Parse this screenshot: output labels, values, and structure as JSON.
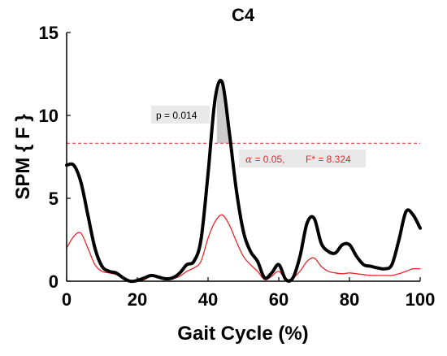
{
  "chart_data": {
    "type": "line",
    "title": "C4",
    "xlabel": "Gait Cycle (%)",
    "ylabel": "SPM { F }",
    "xlim": [
      0,
      100
    ],
    "ylim": [
      0,
      15
    ],
    "xticks": [
      0,
      20,
      40,
      60,
      80,
      100
    ],
    "yticks": [
      0,
      5,
      10,
      15
    ],
    "grid": false,
    "series": [
      {
        "color": "#000000",
        "x": [
          0,
          2,
          4,
          6,
          8,
          10,
          12,
          14,
          16,
          18,
          20,
          22,
          24,
          26,
          28,
          30,
          32,
          34,
          36,
          38,
          40,
          42,
          44,
          46,
          48,
          50,
          52,
          54,
          56,
          58,
          60,
          62,
          64,
          66,
          68,
          70,
          72,
          74,
          76,
          78,
          80,
          82,
          84,
          86,
          88,
          90,
          92,
          94,
          96,
          98,
          100
        ],
        "y": [
          7.0,
          7.0,
          6.0,
          4.0,
          2.0,
          0.9,
          0.6,
          0.5,
          0.2,
          0.0,
          0.05,
          0.2,
          0.35,
          0.25,
          0.15,
          0.2,
          0.5,
          1.0,
          1.2,
          2.5,
          6.5,
          11.0,
          12.0,
          9.0,
          5.5,
          3.0,
          1.8,
          1.2,
          0.2,
          0.5,
          1.0,
          0.1,
          0.2,
          1.5,
          3.5,
          3.8,
          2.3,
          1.8,
          1.7,
          2.2,
          2.2,
          1.5,
          1.0,
          0.9,
          0.8,
          0.75,
          1.0,
          2.5,
          4.2,
          4.0,
          3.2
        ]
      },
      {
        "color": "#e8282c",
        "x": [
          0,
          2,
          4,
          6,
          8,
          10,
          12,
          14,
          16,
          18,
          20,
          22,
          24,
          26,
          28,
          30,
          32,
          34,
          36,
          38,
          40,
          42,
          44,
          46,
          48,
          50,
          52,
          54,
          56,
          58,
          60,
          62,
          64,
          66,
          68,
          70,
          72,
          74,
          76,
          78,
          80,
          82,
          84,
          86,
          88,
          90,
          92,
          94,
          96,
          98,
          100
        ],
        "y": [
          2.0,
          2.7,
          2.9,
          2.0,
          1.0,
          0.6,
          0.5,
          0.4,
          0.2,
          0.05,
          0.0,
          0.1,
          0.3,
          0.2,
          0.1,
          0.15,
          0.3,
          0.6,
          0.8,
          1.2,
          2.6,
          3.6,
          4.0,
          3.4,
          2.4,
          1.5,
          1.0,
          0.6,
          0.1,
          0.3,
          0.6,
          0.1,
          0.2,
          0.6,
          1.2,
          1.4,
          0.9,
          0.6,
          0.5,
          0.45,
          0.5,
          0.45,
          0.4,
          0.35,
          0.35,
          0.35,
          0.35,
          0.45,
          0.6,
          0.75,
          0.75
        ]
      }
    ],
    "threshold": {
      "value": 8.324,
      "color": "#e8282c",
      "style": "dashed"
    },
    "cluster": {
      "x_start": 42.5,
      "x_end": 47.2,
      "fill": "#cccccc"
    },
    "annotations": {
      "p_label": "p = 0.014",
      "alpha_symbol": "α",
      "alpha_label": " = 0.05,",
      "fstar_label": "F* = 8.324"
    }
  }
}
